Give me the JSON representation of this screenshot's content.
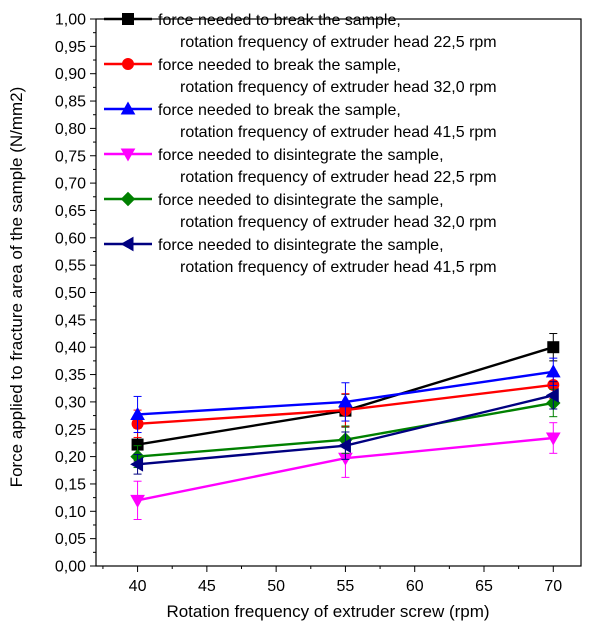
{
  "chart_data": {
    "type": "line",
    "title": "",
    "xlabel": "Rotation frequency of extruder screw (rpm)",
    "ylabel": "Force applied to fracture area of the sample (N/mm2)",
    "xlim": [
      37,
      72
    ],
    "ylim": [
      0,
      1.0
    ],
    "x_ticks": [
      "40",
      "45",
      "50",
      "55",
      "60",
      "65",
      "70"
    ],
    "y_ticks": [
      "0,00",
      "0,05",
      "0,10",
      "0,15",
      "0,20",
      "0,25",
      "0,30",
      "0,35",
      "0,40",
      "0,45",
      "0,50",
      "0,55",
      "0,60",
      "0,65",
      "0,70",
      "0,75",
      "0,80",
      "0,85",
      "0,90",
      "0,95",
      "1,00"
    ],
    "grid": false,
    "legend_position": "top-left",
    "x": [
      40,
      55,
      70
    ],
    "series": [
      {
        "legend_line1": "force needed to break the sample,",
        "legend_line2": "rotation frequency of extruder head 22,5 rpm",
        "color": "#000000",
        "marker": "square",
        "values": [
          0.222,
          0.284,
          0.4
        ],
        "errors": [
          0.03,
          0.03,
          0.025
        ]
      },
      {
        "legend_line1": "force needed to break the sample,",
        "legend_line2": "rotation frequency of extruder head 32,0 rpm",
        "color": "#ff0000",
        "marker": "circle",
        "values": [
          0.26,
          0.285,
          0.331
        ],
        "errors": [
          0.025,
          0.03,
          0.025
        ]
      },
      {
        "legend_line1": "force needed to break the sample,",
        "legend_line2": "rotation frequency of extruder head 41,5 rpm",
        "color": "#0000ff",
        "marker": "triangle-up",
        "values": [
          0.277,
          0.3,
          0.355
        ],
        "errors": [
          0.033,
          0.035,
          0.025
        ]
      },
      {
        "legend_line1": "force needed to disintegrate the sample,",
        "legend_line2": "rotation frequency of extruder head 22,5 rpm",
        "color": "#ff00ff",
        "marker": "triangle-down",
        "values": [
          0.12,
          0.197,
          0.234
        ],
        "errors": [
          0.035,
          0.035,
          0.028
        ]
      },
      {
        "legend_line1": "force needed to disintegrate the sample,",
        "legend_line2": "rotation frequency of extruder head 32,0 rpm",
        "color": "#008000",
        "marker": "diamond",
        "values": [
          0.2,
          0.231,
          0.298
        ],
        "errors": [
          0.02,
          0.025,
          0.025
        ]
      },
      {
        "legend_line1": "force needed to disintegrate the sample,",
        "legend_line2": "rotation frequency of extruder head 41,5 rpm",
        "color": "#000080",
        "marker": "triangle-left",
        "values": [
          0.186,
          0.22,
          0.312
        ],
        "errors": [
          0.018,
          0.025,
          0.025
        ]
      }
    ]
  }
}
